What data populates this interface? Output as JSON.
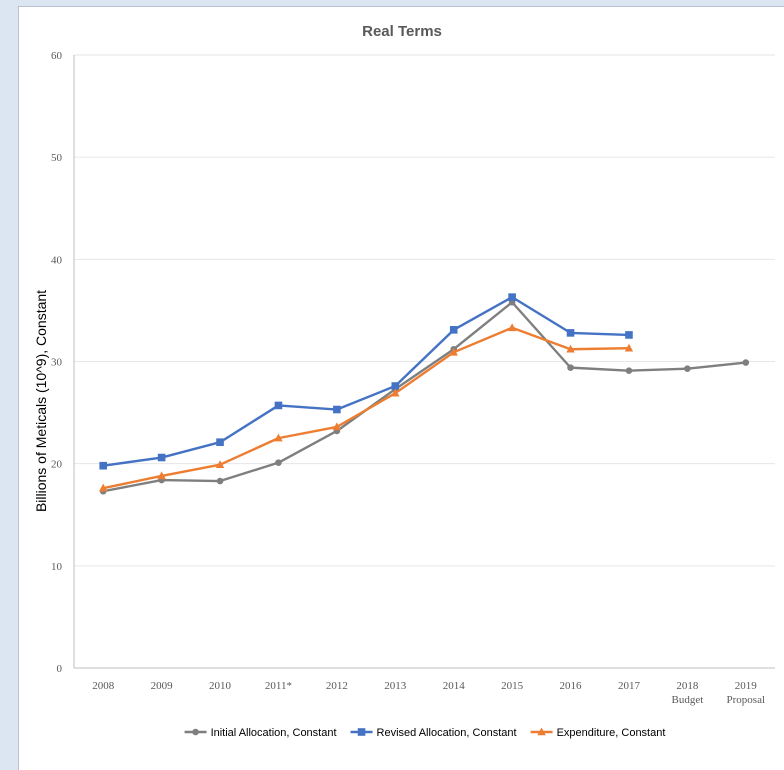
{
  "chart_data": {
    "type": "line",
    "title": "Real Terms",
    "ylabel": "Billions of Meticals (10^9), Constant",
    "xlabel": "",
    "categories": [
      "2008",
      "2009",
      "2010",
      "2011*",
      "2012",
      "2013",
      "2014",
      "2015",
      "2016",
      "2017",
      "2018",
      "2019"
    ],
    "category_sublabels": [
      "",
      "",
      "",
      "",
      "",
      "",
      "",
      "",
      "",
      "",
      "Budget",
      "Proposal"
    ],
    "ylim": [
      0,
      60
    ],
    "yticks": [
      0,
      10,
      20,
      30,
      40,
      50,
      60
    ],
    "grid": true,
    "legend_position": "bottom",
    "series": [
      {
        "name": "Initial Allocation, Constant",
        "color": "#7f7f7f",
        "marker": "circle",
        "values": [
          17.3,
          18.4,
          18.3,
          20.1,
          23.2,
          27.3,
          31.2,
          35.8,
          29.4,
          29.1,
          29.3,
          29.9
        ]
      },
      {
        "name": "Revised Allocation, Constant",
        "color": "#4472c4",
        "marker": "square",
        "values": [
          19.8,
          20.6,
          22.1,
          25.7,
          25.3,
          27.6,
          33.1,
          36.3,
          32.8,
          32.6,
          null,
          null
        ]
      },
      {
        "name": "Expenditure, Constant",
        "color": "#ed7d31",
        "marker": "triangle",
        "values": [
          17.6,
          18.8,
          19.9,
          22.5,
          23.6,
          26.9,
          30.9,
          33.3,
          31.2,
          31.3,
          null,
          null
        ]
      }
    ]
  }
}
